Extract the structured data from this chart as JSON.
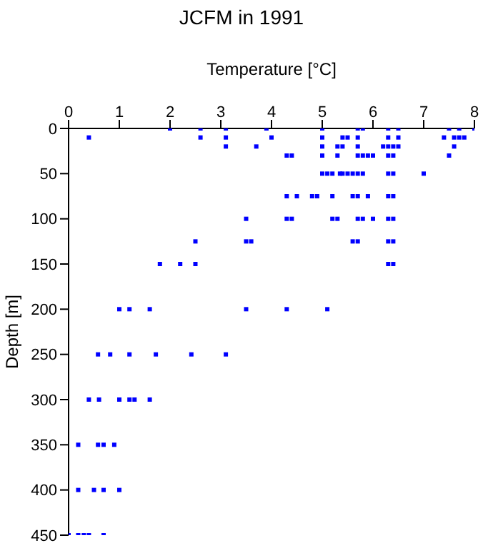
{
  "chart_data": {
    "type": "scatter",
    "title": "JCFM in 1991",
    "xlabel": "Temperature [°C]",
    "ylabel": "Depth [m]",
    "xlim": [
      0,
      8
    ],
    "xticks": [
      0,
      1,
      2,
      3,
      4,
      5,
      6,
      7,
      8
    ],
    "ylim": [
      450,
      0
    ],
    "yticks": [
      0,
      50,
      100,
      150,
      200,
      250,
      300,
      350,
      400,
      450
    ],
    "marker": "square",
    "series": [
      {
        "color": "#0000ff",
        "x": [
          2.0,
          2.6,
          3.1,
          3.9,
          5.0,
          5.7,
          5.8,
          6.3,
          6.5,
          7.5,
          7.7,
          8.0,
          0.4,
          2.6,
          3.1,
          4.0,
          5.0,
          5.4,
          5.5,
          5.7,
          6.3,
          6.5,
          7.4,
          7.6,
          7.7,
          7.8,
          3.1,
          3.7,
          5.0,
          5.3,
          5.4,
          5.7,
          6.2,
          6.3,
          6.4,
          6.5,
          7.6,
          4.3,
          4.4,
          5.0,
          5.3,
          5.7,
          5.8,
          5.9,
          6.0,
          6.3,
          6.4,
          7.5,
          5.0,
          5.1,
          5.2,
          5.35,
          5.4,
          5.5,
          5.6,
          5.7,
          5.8,
          6.3,
          6.4,
          7.0,
          4.3,
          4.5,
          4.8,
          4.9,
          5.2,
          5.6,
          5.7,
          5.9,
          6.3,
          6.4,
          3.5,
          4.3,
          4.4,
          5.2,
          5.3,
          5.7,
          5.8,
          6.0,
          6.3,
          6.4,
          2.5,
          3.5,
          3.6,
          5.6,
          5.7,
          6.3,
          6.4,
          1.8,
          2.2,
          2.5,
          6.3,
          6.4,
          1.0,
          1.2,
          1.6,
          3.5,
          4.3,
          5.1,
          0.58,
          0.82,
          1.2,
          1.72,
          2.42,
          3.1,
          0.4,
          0.6,
          1.0,
          1.2,
          1.3,
          1.6,
          0.19,
          0.58,
          0.69,
          0.9,
          0.19,
          0.5,
          0.69,
          1.0,
          0,
          0.19,
          0.3,
          0.4,
          0.69
        ],
        "values": [
          0,
          0,
          0,
          0,
          0,
          0,
          0,
          0,
          0,
          0,
          0,
          0,
          10,
          10,
          10,
          10,
          10,
          10,
          10,
          10,
          10,
          10,
          10,
          10,
          10,
          10,
          20,
          20,
          20,
          20,
          20,
          20,
          20,
          20,
          20,
          20,
          20,
          30,
          30,
          30,
          30,
          30,
          30,
          30,
          30,
          30,
          30,
          30,
          50,
          50,
          50,
          50,
          50,
          50,
          50,
          50,
          50,
          50,
          50,
          50,
          75,
          75,
          75,
          75,
          75,
          75,
          75,
          75,
          75,
          75,
          100,
          100,
          100,
          100,
          100,
          100,
          100,
          100,
          100,
          100,
          125,
          125,
          125,
          125,
          125,
          125,
          125,
          150,
          150,
          150,
          150,
          150,
          200,
          200,
          200,
          200,
          200,
          200,
          250,
          250,
          250,
          250,
          250,
          250,
          300,
          300,
          300,
          300,
          300,
          300,
          350,
          350,
          350,
          350,
          400,
          400,
          400,
          400,
          450,
          450,
          450,
          450,
          450
        ]
      }
    ]
  }
}
